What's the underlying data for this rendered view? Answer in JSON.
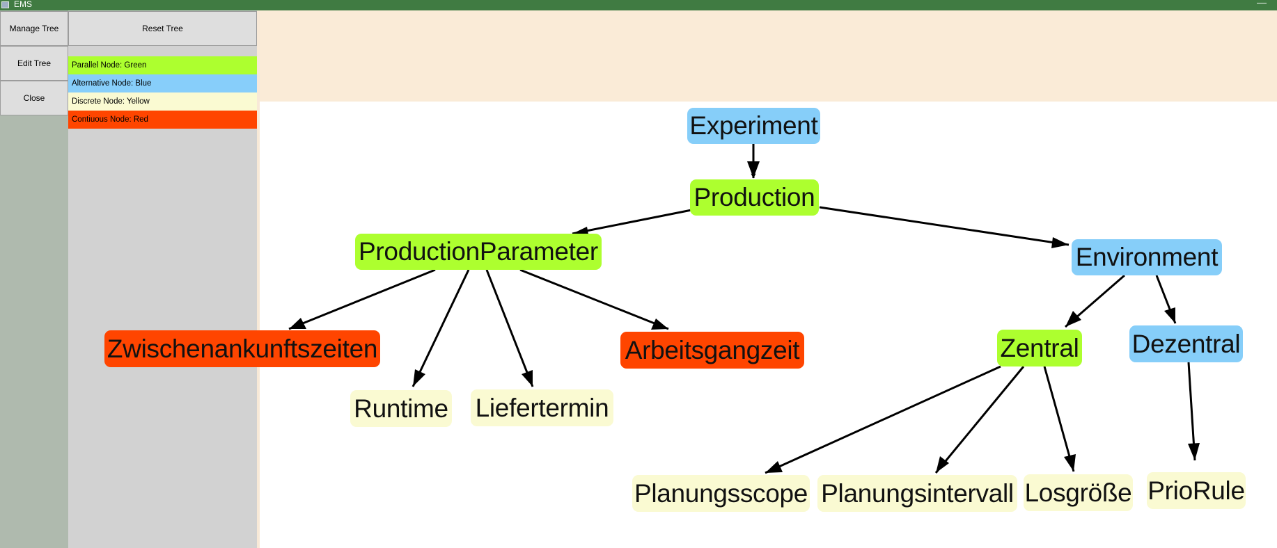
{
  "window": {
    "title": "EMS",
    "minimize_glyph": "—"
  },
  "sidebar": {
    "manage_tree": "Manage Tree",
    "edit_tree": "Edit Tree",
    "close": "Close",
    "reset_tree": "Reset Tree"
  },
  "legend": [
    {
      "label": "Parallel Node: Green",
      "color": "#adff2f"
    },
    {
      "label": "Alternative Node: Blue",
      "color": "#87cefa"
    },
    {
      "label": "Discrete Node: Yellow",
      "color": "#fafad2"
    },
    {
      "label": "Contiuous Node: Red",
      "color": "#ff4500"
    }
  ],
  "colors": {
    "title_bar": "#407b42",
    "parallel": "#adff2f",
    "alternative": "#87cefa",
    "discrete": "#fafad2",
    "continuous": "#ff4500",
    "top_band": "#faebd7"
  },
  "tree": {
    "experiment": "Experiment",
    "production": "Production",
    "production_parameter": "ProductionParameter",
    "environment": "Environment",
    "zwischenankunftszeiten": "Zwischenankunftszeiten",
    "runtime": "Runtime",
    "liefertermin": "Liefertermin",
    "arbeitsgangzeit": "Arbeitsgangzeit",
    "zentral": "Zentral",
    "dezentral": "Dezentral",
    "planungsscope": "Planungsscope",
    "planungsintervall": "Planungsintervall",
    "losgroesse": "Losgröße",
    "priorule": "PrioRule"
  }
}
